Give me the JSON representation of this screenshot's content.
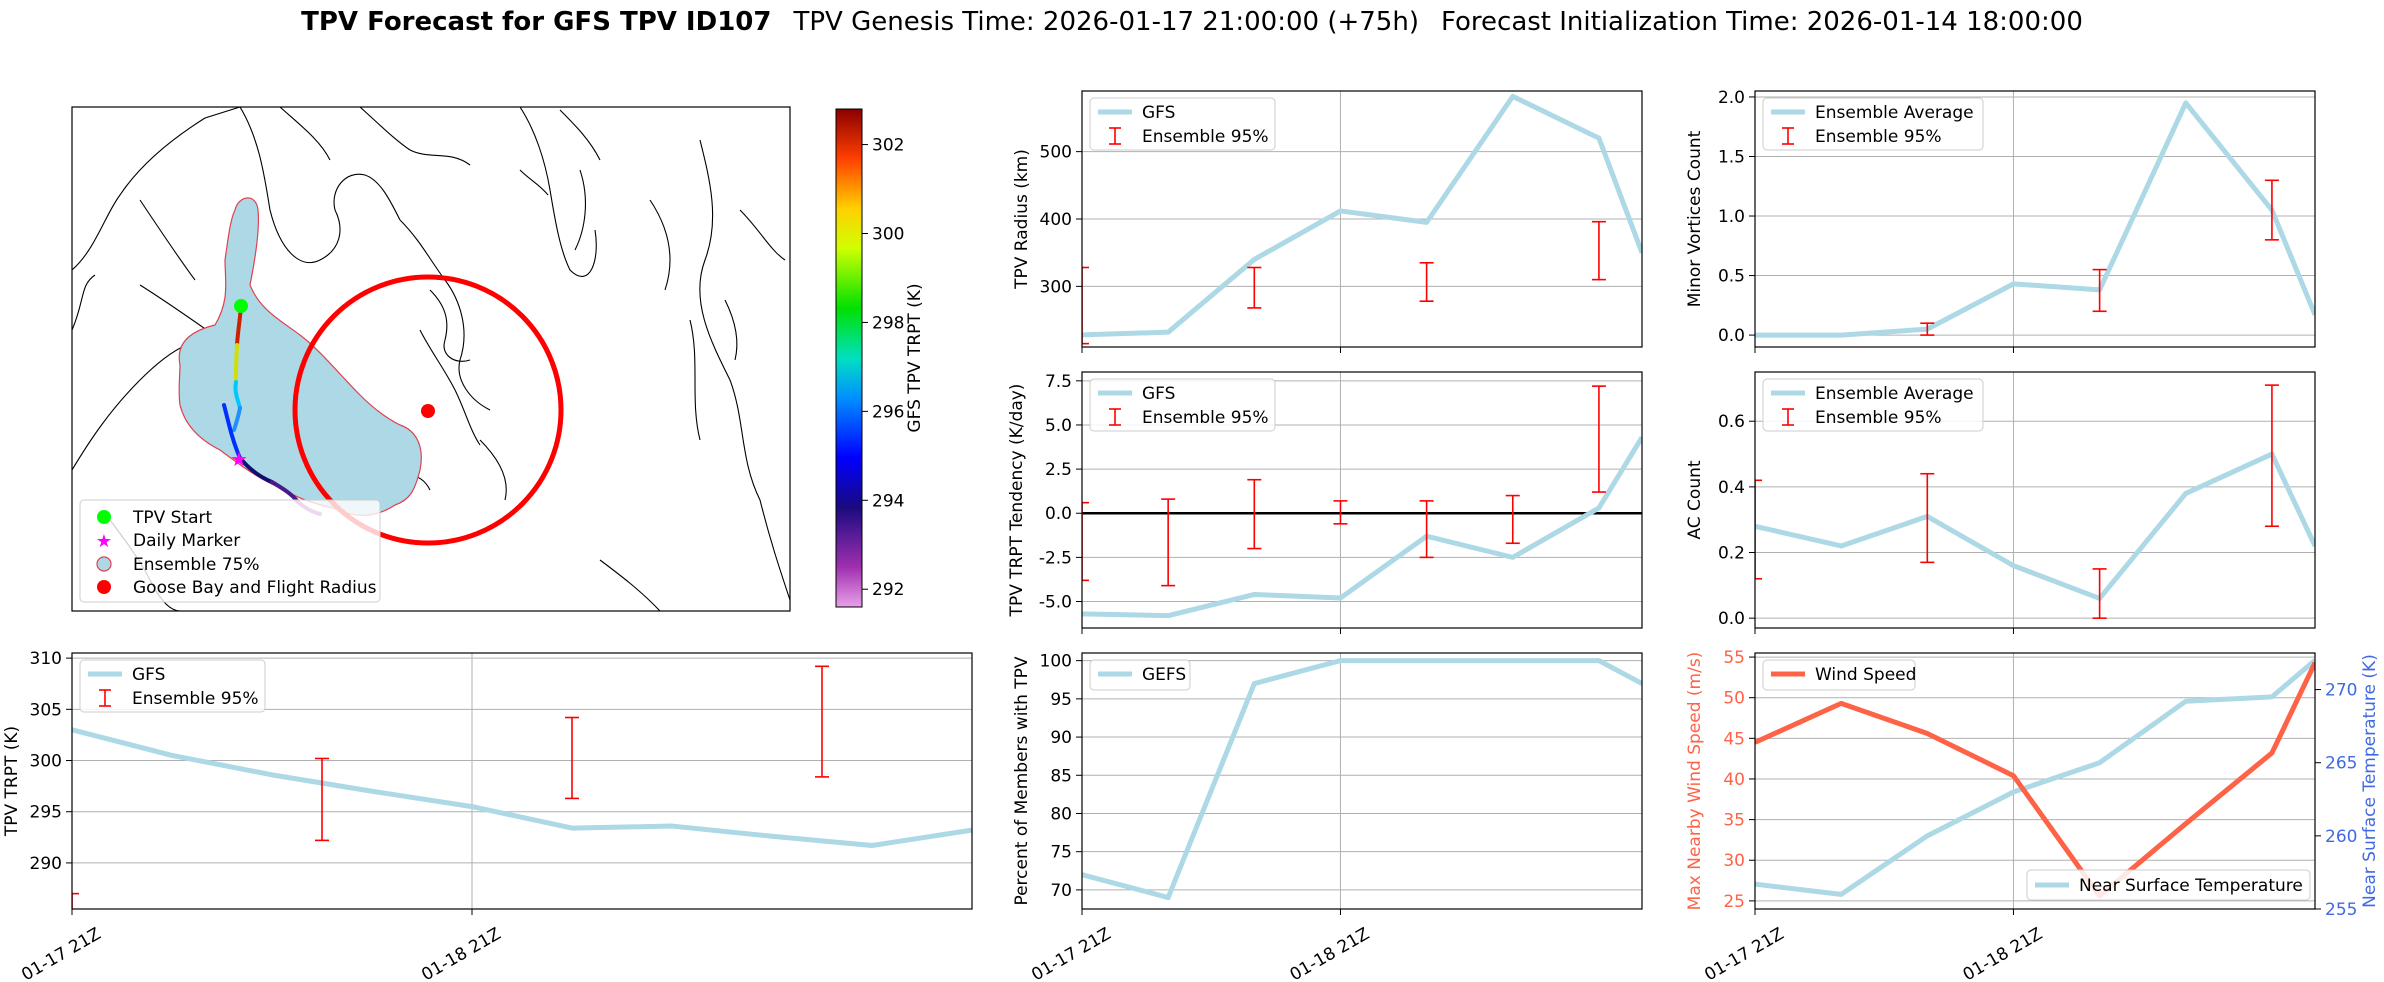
{
  "title": {
    "bold": "TPV Forecast for GFS TPV ID107",
    "genesis": "TPV Genesis Time: 2026-01-17 21:00:00 (+75h)",
    "init": "Forecast Initialization Time: 2026-01-14 18:00:00"
  },
  "colors": {
    "gfs": "#add8e6",
    "ens": "#ff0000",
    "wind": "#ff6347",
    "temp_axis": "#4169e1"
  },
  "map": {
    "colorbar": {
      "label": "GFS TPV TRPT (K)",
      "ticks": [
        302,
        300,
        298,
        296,
        294,
        292
      ],
      "range": [
        291.6,
        302.8
      ]
    },
    "legend": [
      "TPV Start",
      "Daily Marker",
      "Ensemble 75%",
      "Goose Bay and Flight Radius"
    ],
    "track_icon": "tpv-track-line"
  },
  "chart_data": [
    {
      "id": "trpt",
      "type": "line",
      "ylabel": "TPV TRPT (K)",
      "xlim": [
        0,
        18
      ],
      "ylim": [
        285.5,
        310.5
      ],
      "yticks": [
        290,
        295,
        300,
        305,
        310
      ],
      "xticks": [
        {
          "x": 0,
          "label": "01-17 21Z"
        },
        {
          "x": 8,
          "label": "01-18 21Z"
        }
      ],
      "series": [
        {
          "name": "GFS",
          "x": [
            0,
            2,
            4,
            6,
            8,
            10,
            12,
            14,
            16,
            18
          ],
          "y": [
            303,
            300.5,
            298.6,
            297.0,
            295.5,
            293.4,
            293.6,
            292.6,
            291.7,
            293.2
          ]
        }
      ],
      "ensemble": {
        "name": "Ensemble 95%",
        "x": [
          0,
          5,
          10,
          15
        ],
        "low": [
          285,
          292.2,
          296.3,
          298.4
        ],
        "high": [
          287,
          300.2,
          304.2,
          309.2
        ]
      }
    },
    {
      "id": "radius",
      "type": "line",
      "ylabel": "TPV Radius (km)",
      "xlim": [
        0,
        13
      ],
      "ylim": [
        210,
        590
      ],
      "yticks": [
        300,
        400,
        500
      ],
      "series": [
        {
          "name": "GFS",
          "x": [
            0,
            2,
            4,
            6,
            8,
            10,
            12,
            13
          ],
          "y": [
            228,
            232,
            340,
            412,
            395,
            582,
            520,
            350
          ]
        }
      ],
      "ensemble": {
        "name": "Ensemble 95%",
        "x": [
          0,
          4,
          8,
          12
        ],
        "low": [
          215,
          268,
          278,
          310
        ],
        "high": [
          328,
          328,
          335,
          396
        ]
      }
    },
    {
      "id": "minor",
      "type": "line",
      "ylabel": "Minor Vortices Count",
      "xlim": [
        0,
        13
      ],
      "ylim": [
        -0.1,
        2.05
      ],
      "yticks": [
        0.0,
        0.5,
        1.0,
        1.5,
        2.0
      ],
      "series": [
        {
          "name": "Ensemble Average",
          "x": [
            0,
            2,
            4,
            6,
            8,
            10,
            12,
            13
          ],
          "y": [
            0.0,
            0.0,
            0.05,
            0.43,
            0.38,
            1.95,
            1.05,
            0.17
          ]
        }
      ],
      "ensemble": {
        "name": "Ensemble 95%",
        "x": [
          4,
          8,
          12
        ],
        "low": [
          0.0,
          0.2,
          0.8
        ],
        "high": [
          0.1,
          0.55,
          1.3
        ]
      }
    },
    {
      "id": "tendency",
      "type": "line",
      "ylabel": "TPV TRPT Tendency (K/day)",
      "xlim": [
        0,
        13
      ],
      "ylim": [
        -6.5,
        8.0
      ],
      "yticks": [
        -5.0,
        -2.5,
        0.0,
        2.5,
        5.0,
        7.5
      ],
      "series": [
        {
          "name": "GFS",
          "x": [
            0,
            2,
            4,
            6,
            8,
            10,
            12,
            13
          ],
          "y": [
            -5.7,
            -5.8,
            -4.6,
            -4.8,
            -1.3,
            -2.5,
            0.3,
            4.3
          ]
        }
      ],
      "ensemble": {
        "name": "Ensemble 95%",
        "x": [
          0,
          2,
          4,
          6,
          8,
          10,
          12,
          14
        ],
        "low": [
          -3.8,
          -4.1,
          -2.0,
          -0.6,
          -2.5,
          -1.7,
          1.2,
          0.8
        ],
        "high": [
          0.6,
          0.8,
          1.9,
          0.7,
          0.7,
          1.0,
          7.2,
          7.5
        ]
      }
    },
    {
      "id": "ac",
      "type": "line",
      "ylabel": "AC Count",
      "xlim": [
        0,
        13
      ],
      "ylim": [
        -0.03,
        0.75
      ],
      "yticks": [
        0.0,
        0.2,
        0.4,
        0.6
      ],
      "series": [
        {
          "name": "Ensemble Average",
          "x": [
            0,
            2,
            4,
            6,
            8,
            10,
            12,
            13
          ],
          "y": [
            0.28,
            0.22,
            0.31,
            0.16,
            0.06,
            0.38,
            0.5,
            0.22
          ]
        }
      ],
      "ensemble": {
        "name": "Ensemble 95%",
        "x": [
          0,
          4,
          8,
          12
        ],
        "low": [
          0.12,
          0.17,
          0.0,
          0.28
        ],
        "high": [
          0.42,
          0.44,
          0.15,
          0.71
        ]
      }
    },
    {
      "id": "members",
      "type": "line",
      "ylabel": "Percent of Members with TPV",
      "xlim": [
        0,
        13
      ],
      "ylim": [
        67.5,
        101
      ],
      "yticks": [
        70,
        75,
        80,
        85,
        90,
        95,
        100
      ],
      "series": [
        {
          "name": "GEFS",
          "x": [
            0,
            2,
            4,
            6,
            8,
            10,
            12,
            13
          ],
          "y": [
            72,
            69,
            97,
            100,
            100,
            100,
            100,
            97
          ]
        }
      ]
    },
    {
      "id": "wind",
      "type": "line",
      "ylabel": "Max Nearby Wind Speed (m/s)",
      "ylabel2": "Near Surface Temperature (K)",
      "xlim": [
        0,
        13
      ],
      "ylim": [
        24,
        55.5
      ],
      "ylim2": [
        255,
        272.5
      ],
      "yticks": [
        25,
        30,
        35,
        40,
        45,
        50,
        55
      ],
      "yticks2": [
        255,
        260,
        265,
        270
      ],
      "series": [
        {
          "name": "Wind Speed",
          "x": [
            0,
            2,
            4,
            6,
            8,
            10,
            12,
            13
          ],
          "y": [
            44.5,
            49.3,
            45.6,
            40.4,
            25.6,
            34.5,
            43.2,
            54.3
          ]
        },
        {
          "name": "Near Surface Temperature",
          "x": [
            0,
            2,
            4,
            6,
            8,
            10,
            12,
            13
          ],
          "y": [
            256.7,
            256.0,
            260.0,
            263.0,
            265.0,
            269.2,
            269.5,
            272.0
          ]
        }
      ]
    }
  ],
  "shared_xticks": [
    {
      "x": 0,
      "label": "01-17 21Z"
    },
    {
      "x": 6,
      "label": "01-18 21Z"
    }
  ]
}
